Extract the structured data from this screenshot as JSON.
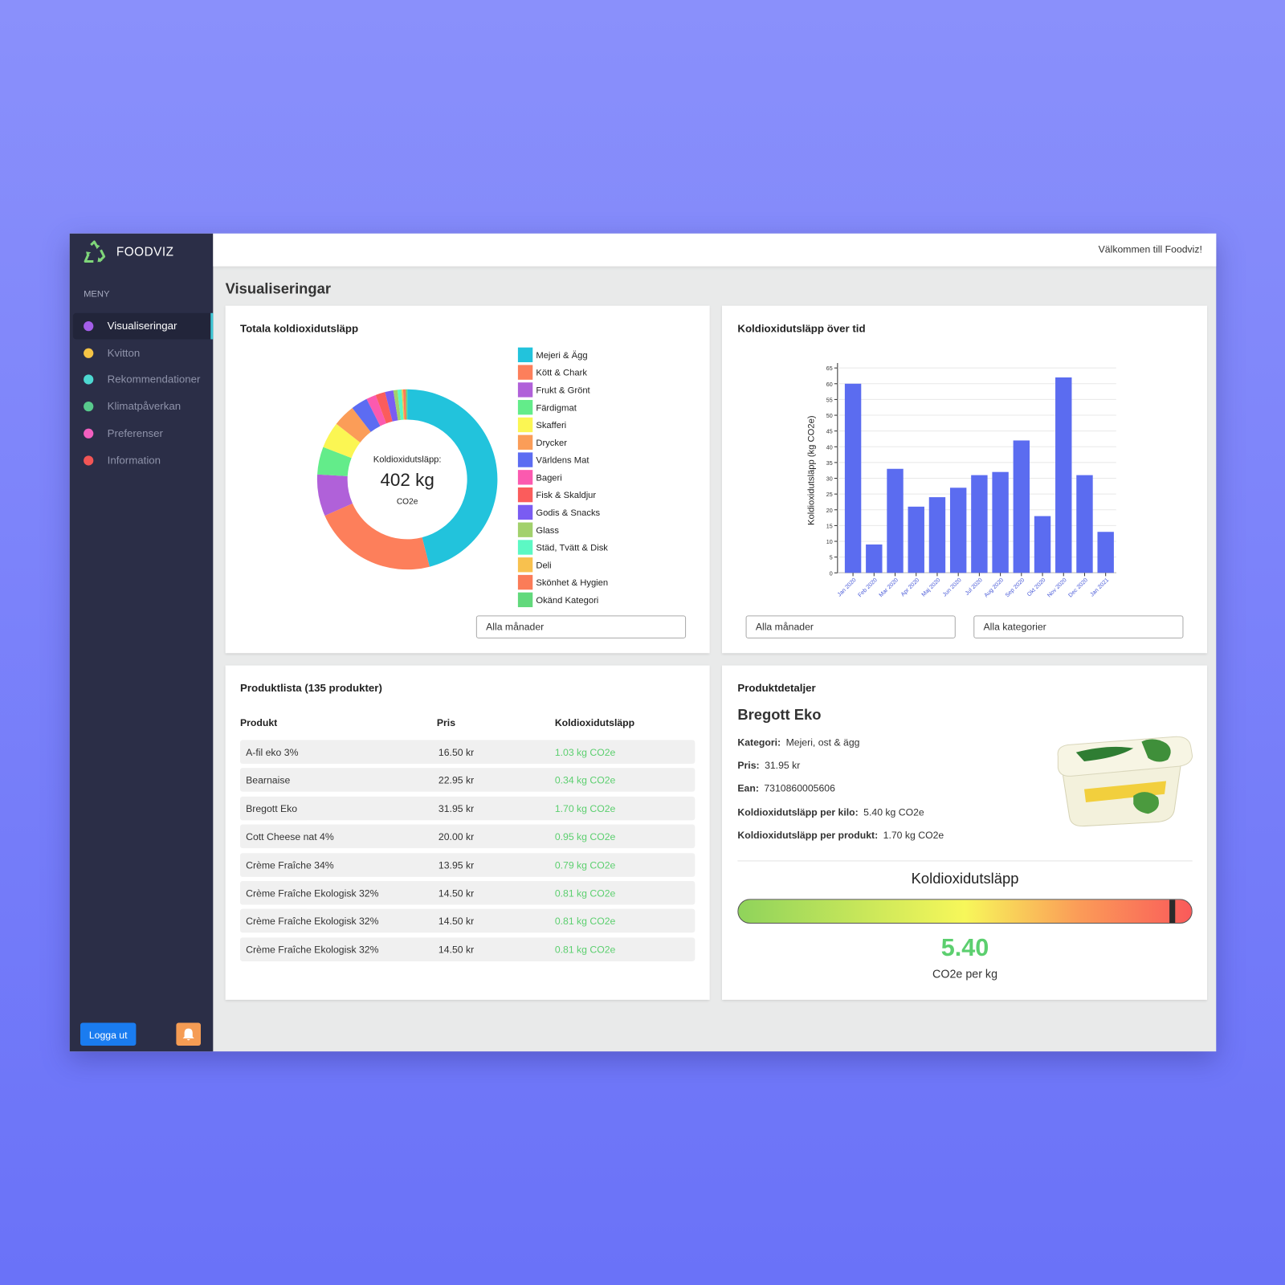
{
  "brand": "FOODVIZ",
  "sidebar": {
    "menu_label": "MENY",
    "items": [
      "Visualiseringar",
      "Kvitton",
      "Rekommendationer",
      "Klimatpåverkan",
      "Preferenser",
      "Information"
    ],
    "logout": "Logga ut"
  },
  "header": {
    "welcome": "Välkommen till Foodviz!"
  },
  "page_title": "Visualiseringar",
  "chart_data": [
    {
      "type": "donut",
      "title": "Totala koldioxidutsläpp",
      "center_label": "Koldioxidutsläpp:",
      "center_value": "402 kg",
      "center_unit": "CO2e",
      "categories": [
        "Mejeri & Ägg",
        "Kött & Chark",
        "Frukt & Grönt",
        "Färdigmat",
        "Skafferi",
        "Drycker",
        "Världens Mat",
        "Bageri",
        "Fisk & Skaldjur",
        "Godis & Snacks",
        "Glass",
        "Städ, Tvätt & Disk",
        "Deli",
        "Skönhet & Hygien",
        "Okänd Kategori"
      ],
      "values": [
        185,
        90,
        30,
        20,
        19,
        16,
        12,
        7,
        7,
        6,
        3,
        3,
        1,
        2,
        1
      ],
      "colors": [
        "#22c3dc",
        "#fd7f5b",
        "#b061d9",
        "#63ec8a",
        "#fbf653",
        "#fb9d58",
        "#5c6cf2",
        "#fb5aaf",
        "#fb5c5c",
        "#7a5cf2",
        "#a2d16c",
        "#5cf8c4",
        "#f8c14e",
        "#fb7c58",
        "#62d97c"
      ],
      "filter": "Alla månader"
    },
    {
      "type": "bar",
      "title": "Koldioxidutsläpp över tid",
      "y_label": "Koldioxidutsläpp (kg CO2e)",
      "categories": [
        "Jan 2020",
        "Feb 2020",
        "Mar 2020",
        "Apr 2020",
        "Maj 2020",
        "Jun 2020",
        "Jul 2020",
        "Aug 2020",
        "Sep 2020",
        "Okt 2020",
        "Nov 2020",
        "Dec 2020",
        "Jan 2021"
      ],
      "values": [
        60,
        9,
        33,
        21,
        24,
        27,
        31,
        32,
        42,
        18,
        62,
        31,
        13
      ],
      "color": "#5b6cf0",
      "ylim": [
        0,
        65
      ],
      "yticks": [
        0,
        5,
        10,
        15,
        20,
        25,
        30,
        35,
        40,
        45,
        50,
        55,
        60,
        65
      ],
      "grid": true,
      "filters": [
        "Alla månader",
        "Alla kategorier"
      ]
    }
  ],
  "product_list": {
    "title": "Produktlista (135 produkter)",
    "columns": [
      "Produkt",
      "Pris",
      "Koldioxidutsläpp"
    ],
    "rows": [
      [
        "A-fil eko 3%",
        "16.50 kr",
        "1.03 kg CO2e"
      ],
      [
        "Bearnaise",
        "22.95 kr",
        "0.34 kg CO2e"
      ],
      [
        "Bregott Eko",
        "31.95 kr",
        "1.70 kg CO2e"
      ],
      [
        "Cott Cheese nat 4%",
        "20.00 kr",
        "0.95 kg CO2e"
      ],
      [
        "Crème Fraîche 34%",
        "13.95 kr",
        "0.79 kg CO2e"
      ],
      [
        "Crème Fraîche Ekologisk 32%",
        "14.50 kr",
        "0.81 kg CO2e"
      ],
      [
        "Crème Fraîche Ekologisk 32%",
        "14.50 kr",
        "0.81 kg CO2e"
      ],
      [
        "Crème Fraîche Ekologisk 32%",
        "14.50 kr",
        "0.81 kg CO2e"
      ]
    ]
  },
  "product_details": {
    "title": "Produktdetaljer",
    "name": "Bregott Eko",
    "fields": [
      {
        "label": "Kategori:",
        "value": "Mejeri, ost & ägg"
      },
      {
        "label": "Pris:",
        "value": "31.95 kr"
      },
      {
        "label": "Ean:",
        "value": "7310860005606"
      },
      {
        "label": "Koldioxidutsläpp per kilo:",
        "value": "5.40 kg CO2e"
      },
      {
        "label": "Koldioxidutsläpp per produkt:",
        "value": "1.70 kg CO2e"
      }
    ],
    "gauge": {
      "title": "Koldioxidutsläpp",
      "value": "5.40",
      "unit": "CO2e per kg"
    }
  }
}
